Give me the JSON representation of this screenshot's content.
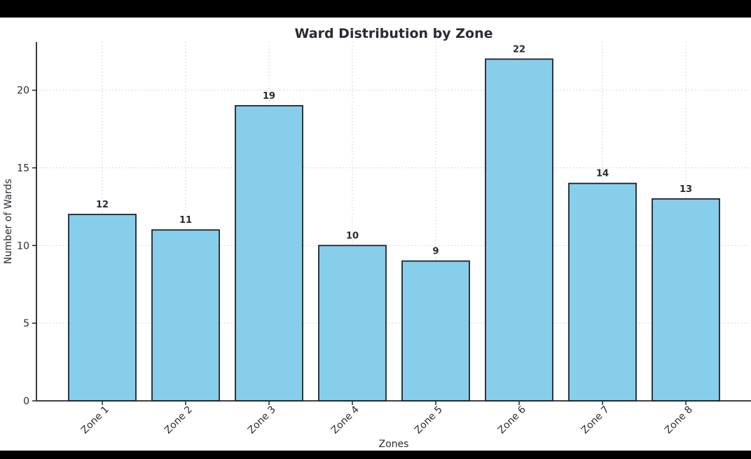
{
  "page": {
    "background_color": "#ffffff",
    "letterbox_color": "#000000"
  },
  "chart_data": {
    "type": "bar",
    "title": "Ward Distribution by Zone",
    "xlabel": "Zones",
    "ylabel": "Number of Wards",
    "categories": [
      "Zone 1",
      "Zone 2",
      "Zone 3",
      "Zone 4",
      "Zone 5",
      "Zone 6",
      "Zone 7",
      "Zone 8"
    ],
    "values": [
      12,
      11,
      19,
      10,
      9,
      22,
      14,
      13
    ],
    "value_labels": [
      "12",
      "11",
      "19",
      "10",
      "9",
      "22",
      "14",
      "13"
    ],
    "yticks": [
      0,
      5,
      10,
      15,
      20
    ],
    "ylim": [
      0,
      23.1
    ],
    "grid": "dotted both axes",
    "legend_position": "none",
    "x_tick_rotation_deg": 45,
    "colors": {
      "bar_fill": "#87CEEB",
      "bar_edge": "#1b2430",
      "text": "#2a2a33",
      "grid": "#cccccc",
      "spine": "#22262e"
    }
  }
}
